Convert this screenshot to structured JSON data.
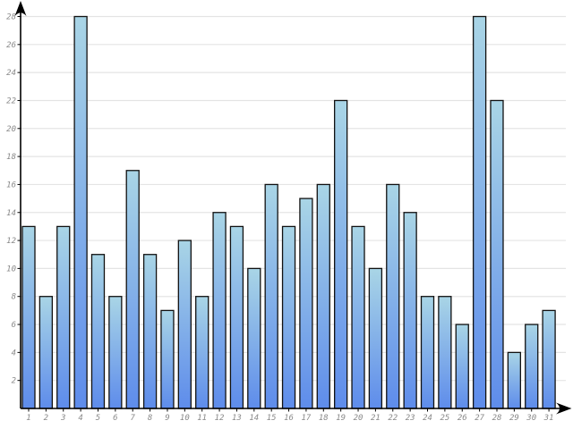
{
  "chart_data": {
    "type": "bar",
    "title": "",
    "xlabel": "",
    "ylabel": "",
    "categories": [
      "1",
      "2",
      "3",
      "4",
      "5",
      "6",
      "7",
      "8",
      "9",
      "10",
      "11",
      "12",
      "13",
      "14",
      "15",
      "16",
      "17",
      "18",
      "19",
      "20",
      "21",
      "22",
      "23",
      "24",
      "25",
      "26",
      "27",
      "28",
      "29",
      "30",
      "31"
    ],
    "values": [
      13,
      8,
      13,
      28,
      11,
      8,
      17,
      11,
      7,
      12,
      8,
      14,
      13,
      10,
      16,
      13,
      15,
      16,
      22,
      13,
      10,
      16,
      14,
      8,
      8,
      6,
      28,
      22,
      4,
      6,
      7
    ],
    "yticks": [
      2,
      4,
      6,
      8,
      10,
      12,
      14,
      16,
      18,
      20,
      22,
      24,
      26,
      28
    ],
    "ylim": [
      0,
      28
    ],
    "grid": true,
    "legend": "none",
    "colors": {
      "background": "#ffffff",
      "bar_gradient_top": "#a9d5e6",
      "bar_gradient_bottom": "#5e8ceb",
      "bar_border": "#111111",
      "gridline": "#e4e4e4",
      "axis": "#000000",
      "tick_label": "#8a8a8a"
    }
  }
}
